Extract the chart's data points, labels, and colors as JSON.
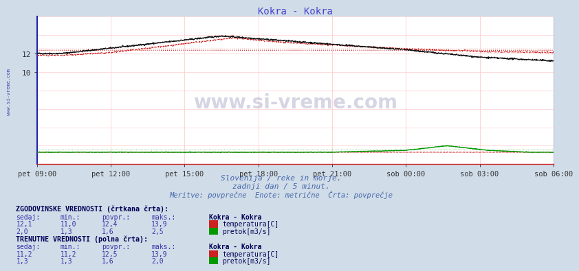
{
  "title": "Kokra - Kokra",
  "title_color": "#4444cc",
  "bg_color": "#d0dce8",
  "plot_bg_color": "#ffffff",
  "xlabel_times": [
    "pet 09:00",
    "pet 12:00",
    "pet 15:00",
    "pet 18:00",
    "pet 21:00",
    "sob 00:00",
    "sob 03:00",
    "sob 06:00"
  ],
  "x_ticks": [
    0,
    180,
    360,
    540,
    720,
    900,
    1080,
    1260
  ],
  "x_total": 1260,
  "ylim_min": 0,
  "ylim_max": 16,
  "yticks": [
    10,
    12
  ],
  "grid_color": "#ffcccc",
  "grid_vcolor": "#ffcccc",
  "watermark_text": "www.si-vreme.com",
  "watermark_color": "#1a1a6e",
  "watermark_alpha": 0.18,
  "subtitle1": "Slovenija / reke in morje.",
  "subtitle2": "zadnji dan / 5 minut.",
  "subtitle3": "Meritve: povprečne  Enote: metrične  Črta: povprečje",
  "subtitle_color": "#4466aa",
  "temp_solid_color": "#111111",
  "temp_dashed_color": "#cc2222",
  "temp_avg_color": "#cc2222",
  "flow_solid_color": "#009900",
  "flow_dashed_color": "#cc2222",
  "flow_avg_color": "#009900",
  "left_label": "www.si-vreme.com",
  "left_label_color": "#4444aa",
  "table_color": "#3333aa",
  "hist_section_title": "ZGODOVINSKE VREDNOSTI (črtkana črta):",
  "curr_section_title": "TRENUTNE VREDNOSTI (polna črta):",
  "col_headers": [
    "sedaj:",
    "min.:",
    "povpr.:",
    "maks.:",
    "Kokra - Kokra"
  ],
  "hist_temp": {
    "sedaj": "12,1",
    "min": "11,0",
    "povpr": "12,4",
    "maks": "13,9",
    "label": "temperatura[C]"
  },
  "hist_flow": {
    "sedaj": "2,0",
    "min": "1,3",
    "povpr": "1,6",
    "maks": "2,5",
    "label": "pretok[m3/s]"
  },
  "curr_temp": {
    "sedaj": "11,2",
    "min": "11,2",
    "povpr": "12,5",
    "maks": "13,9",
    "label": "temperatura[C]"
  },
  "curr_flow": {
    "sedaj": "1,3",
    "min": "1,3",
    "povpr": "1,6",
    "maks": "2,0",
    "label": "pretok[m3/s]"
  },
  "temp_icon_color": "#cc2222",
  "flow_icon_color": "#009900"
}
